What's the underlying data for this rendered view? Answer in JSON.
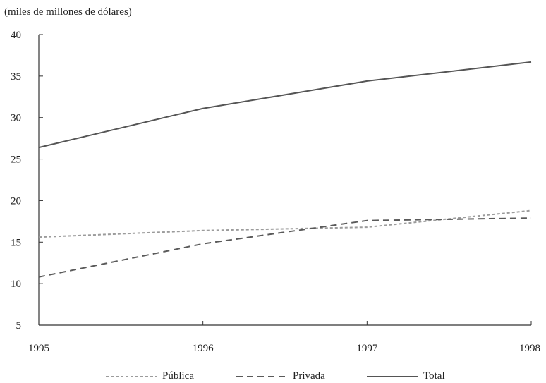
{
  "chart_data": {
    "type": "line",
    "title": "",
    "unit_label": "(miles de millones de dólares)",
    "xlabel": "",
    "ylabel": "",
    "x": [
      1995,
      1996,
      1997,
      1998
    ],
    "x_tick_labels": [
      "1995",
      "1996",
      "1997",
      "1998"
    ],
    "y_ticks": [
      5,
      10,
      15,
      20,
      25,
      30,
      35,
      40
    ],
    "ylim": [
      5,
      40
    ],
    "grid": false,
    "legend_position": "bottom",
    "series": [
      {
        "name": "Pública",
        "values": [
          15.6,
          16.4,
          16.8,
          18.8
        ],
        "color": "#9b9b9b",
        "style": "dotted"
      },
      {
        "name": "Privada",
        "values": [
          10.8,
          14.8,
          17.6,
          17.9
        ],
        "color": "#5a5a5a",
        "style": "dashed"
      },
      {
        "name": "Total",
        "values": [
          26.4,
          31.1,
          34.4,
          36.7
        ],
        "color": "#555555",
        "style": "solid"
      }
    ]
  }
}
